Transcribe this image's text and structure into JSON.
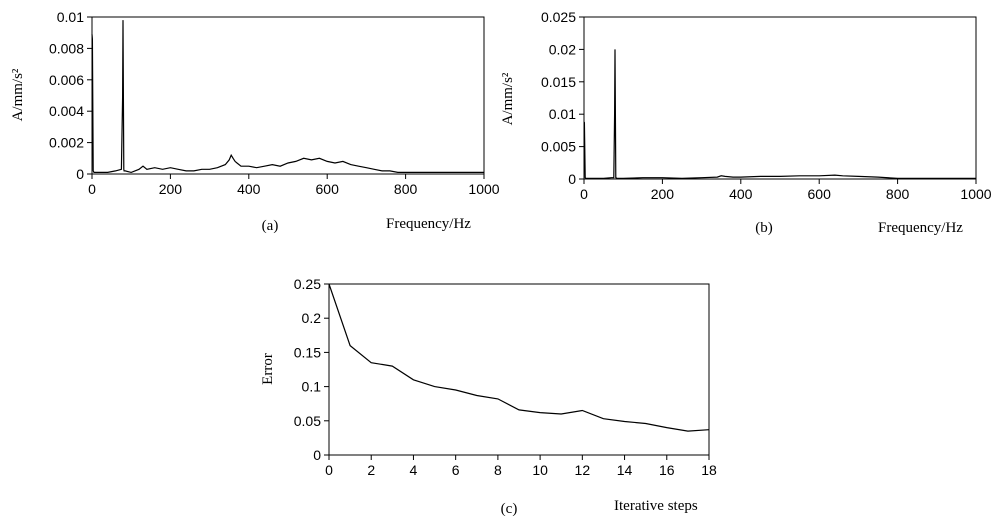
{
  "chart_data": [
    {
      "type": "line",
      "caption": "(a)",
      "xlabel": "Frequency/Hz",
      "ylabel": "A/mm/s²",
      "xlim": [
        0,
        1000
      ],
      "ylim": [
        0,
        0.01
      ],
      "xticks": [
        "0",
        "200",
        "400",
        "600",
        "800",
        "1000"
      ],
      "yticks": [
        "0",
        "0.002",
        "0.004",
        "0.006",
        "0.008",
        "0.01"
      ],
      "grid": false,
      "series": [
        {
          "x": [
            0,
            1,
            2,
            3,
            5,
            8,
            10,
            20,
            40,
            60,
            75,
            78,
            79,
            80,
            81,
            82,
            85,
            100,
            120,
            130,
            140,
            160,
            180,
            200,
            220,
            240,
            260,
            280,
            300,
            320,
            340,
            350,
            355,
            360,
            365,
            370,
            380,
            400,
            420,
            440,
            460,
            480,
            500,
            520,
            540,
            560,
            580,
            600,
            620,
            640,
            660,
            680,
            700,
            720,
            740,
            760,
            780,
            800,
            840,
            880,
            920,
            960,
            1000
          ],
          "y": [
            0.0089,
            0.0086,
            0.0045,
            0.0002,
            0.0001,
            0.0001,
            0.0001,
            0.0001,
            0.0001,
            0.0002,
            0.0003,
            0.0049,
            0.0098,
            0.0049,
            0.0003,
            0.0002,
            0.0002,
            0.0001,
            0.0003,
            0.0005,
            0.0003,
            0.0004,
            0.0003,
            0.0004,
            0.0003,
            0.0002,
            0.0002,
            0.0003,
            0.0003,
            0.0004,
            0.0006,
            0.0009,
            0.0012,
            0.001,
            0.0008,
            0.0007,
            0.0005,
            0.0005,
            0.0004,
            0.0005,
            0.0006,
            0.0005,
            0.0007,
            0.0008,
            0.001,
            0.0009,
            0.001,
            0.0008,
            0.0007,
            0.0008,
            0.0006,
            0.0005,
            0.0004,
            0.0003,
            0.0002,
            0.0002,
            0.0001,
            0.0001,
            0.0001,
            0.0001,
            0.0001,
            0.0001,
            0.0001
          ]
        }
      ]
    },
    {
      "type": "line",
      "caption": "(b)",
      "xlabel": "Frequency/Hz",
      "ylabel": "A/mm/s²",
      "xlim": [
        0,
        1000
      ],
      "ylim": [
        0,
        0.025
      ],
      "xticks": [
        "0",
        "200",
        "400",
        "600",
        "800",
        "1000"
      ],
      "yticks": [
        "0",
        "0.005",
        "0.01",
        "0.015",
        "0.02",
        "0.025"
      ],
      "grid": false,
      "series": [
        {
          "x": [
            0,
            1,
            2,
            3,
            5,
            10,
            30,
            50,
            70,
            76,
            78,
            79,
            80,
            81,
            82,
            84,
            100,
            150,
            200,
            250,
            300,
            340,
            350,
            360,
            380,
            400,
            450,
            500,
            550,
            600,
            640,
            660,
            700,
            750,
            800,
            850,
            900,
            950,
            1000
          ],
          "y": [
            0.0088,
            0.0087,
            0.0045,
            0.0002,
            0.0001,
            0.0001,
            0.0001,
            0.0001,
            0.0002,
            0.0002,
            0.01,
            0.02,
            0.01,
            0.0002,
            0.0002,
            0.0001,
            0.0001,
            0.0002,
            0.0002,
            0.0001,
            0.0002,
            0.0003,
            0.0005,
            0.0004,
            0.0003,
            0.0003,
            0.0004,
            0.0004,
            0.0005,
            0.0005,
            0.0006,
            0.0005,
            0.0004,
            0.0003,
            0.0001,
            0.0001,
            0.0001,
            0.0001,
            0.0001
          ]
        }
      ]
    },
    {
      "type": "line",
      "caption": "(c)",
      "xlabel": "Iterative steps",
      "ylabel": "Error",
      "xlim": [
        0,
        18
      ],
      "ylim": [
        0,
        0.25
      ],
      "xticks": [
        "0",
        "2",
        "4",
        "6",
        "8",
        "10",
        "12",
        "14",
        "16",
        "18"
      ],
      "yticks": [
        "0",
        "0.05",
        "0.1",
        "0.15",
        "0.2",
        "0.25"
      ],
      "grid": false,
      "series": [
        {
          "x": [
            0,
            1,
            2,
            3,
            4,
            5,
            6,
            7,
            8,
            9,
            10,
            11,
            12,
            13,
            14,
            15,
            16,
            17,
            18
          ],
          "y": [
            0.25,
            0.16,
            0.135,
            0.13,
            0.11,
            0.1,
            0.095,
            0.087,
            0.082,
            0.066,
            0.062,
            0.06,
            0.065,
            0.053,
            0.049,
            0.046,
            0.04,
            0.035,
            0.037
          ]
        }
      ]
    }
  ]
}
